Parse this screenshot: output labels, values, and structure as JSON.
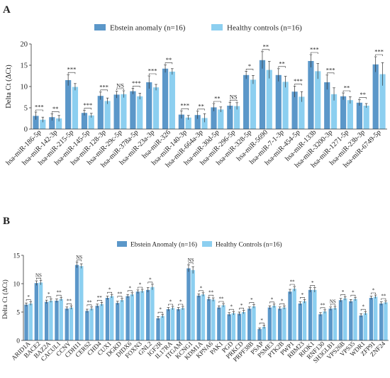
{
  "colors": {
    "series1": "#5b97c9",
    "series2": "#8ccff0",
    "errorbar": "#333333",
    "axis": "#333333"
  },
  "chart_data": [
    {
      "panel_label": "A",
      "type": "bar",
      "ylabel": "Delta Ct (ΔCt)",
      "ylim": [
        0,
        20
      ],
      "yticks": [
        0,
        5,
        10,
        15,
        20
      ],
      "legend_position": "top",
      "categories": [
        "hsa-miR-186-5p",
        "hsa-miR-142-3p",
        "hsa-miR-215-5p",
        "hsa-miR-145-5p",
        "hsa-miR-128-3p",
        "hsa-miR-29c-5p",
        "hsa-miR-378a-5p",
        "hsa-miR-23a-3p",
        "hsa-miR-326",
        "hsa-miR-140-3p",
        "hsa-miR-664a-3p",
        "hsa-miR-30d-5p",
        "hsa-miR-296-5p",
        "hsa-miR-328-5p",
        "hsa-miR-5690",
        "hsa-miR-7-1-3p",
        "hsa-miR-454-5p",
        "hsa-miR-133b",
        "hsa-miR-3200-3p",
        "hsa-miR-1271-5p",
        "hsa-miR-23b-3p",
        "hsa-miR-6749-5p"
      ],
      "series": [
        {
          "name": "Ebstein anomaly (n=16)",
          "values": [
            3.1,
            2.8,
            11.5,
            3.8,
            7.8,
            8.1,
            8.9,
            11.0,
            14.2,
            3.4,
            3.3,
            5.1,
            5.5,
            12.7,
            16.2,
            12.7,
            8.8,
            16.0,
            11.0,
            7.7,
            6.2,
            15.2
          ],
          "errors": [
            0.9,
            0.8,
            1.3,
            0.6,
            0.9,
            0.8,
            0.7,
            1.5,
            0.9,
            0.9,
            0.9,
            0.9,
            0.8,
            0.9,
            2.0,
            1.5,
            1.3,
            1.5,
            1.7,
            0.8,
            0.7,
            1.8
          ]
        },
        {
          "name": "Healthy controls (n=16)",
          "values": [
            2.2,
            2.5,
            9.9,
            3.2,
            6.6,
            8.2,
            7.7,
            9.8,
            13.5,
            2.7,
            2.6,
            4.6,
            5.4,
            11.6,
            13.9,
            11.1,
            7.6,
            13.6,
            8.2,
            6.8,
            5.5,
            12.9
          ],
          "errors": [
            0.6,
            0.7,
            0.8,
            0.5,
            0.7,
            0.8,
            0.7,
            0.7,
            0.7,
            0.5,
            1.0,
            0.6,
            0.8,
            1.0,
            2.0,
            1.3,
            1.2,
            1.8,
            1.5,
            0.8,
            0.5,
            2.7
          ]
        }
      ],
      "significance": [
        "***",
        "**",
        "***",
        "***",
        "***",
        "NS",
        "***",
        "***",
        "**",
        "***",
        "**",
        "**",
        "NS",
        "*",
        "**",
        "**",
        "***",
        "***",
        "***",
        "**",
        "**",
        "***"
      ]
    },
    {
      "panel_label": "B",
      "type": "bar",
      "ylabel": "Delta Ct (ΔCt)",
      "ylim": [
        0,
        15
      ],
      "yticks": [
        0,
        5,
        10,
        15
      ],
      "legend_position": "top",
      "categories": [
        "ARID1A",
        "BACE2",
        "BAZ2A",
        "CACUL1",
        "CCNY",
        "CDH11",
        "CERS2",
        "CHD4",
        "CUX1",
        "DGKD",
        "DIDX6",
        "FOXN3",
        "GNL2",
        "IGF2R",
        "IL17RA",
        "ITGAM",
        "KCNG1",
        "KDM1A",
        "KPNA6",
        "PAK1",
        "PGD",
        "PRKCD",
        "PRPF38B",
        "PSAP",
        "PSME3",
        "PTK2B",
        "PWP1",
        "RBM23",
        "RIOK1",
        "RNF130",
        "SH3GLB1",
        "VPS26B",
        "VPS35",
        "WDR1",
        "ZFP91",
        "ZNF24"
      ],
      "series": [
        {
          "name": "Ebstein Anomaly (n=16)",
          "values": [
            6.3,
            10.1,
            6.8,
            7.0,
            5.6,
            13.3,
            5.2,
            6.1,
            7.5,
            6.6,
            7.8,
            8.6,
            8.9,
            3.9,
            5.5,
            5.5,
            12.7,
            7.9,
            7.3,
            5.8,
            4.6,
            4.7,
            5.6,
            2.0,
            5.8,
            5.6,
            8.6,
            6.5,
            8.9,
            4.6,
            5.6,
            7.1,
            6.9,
            4.4,
            7.5,
            6.5
          ],
          "errors": [
            0.3,
            0.4,
            0.3,
            0.3,
            0.3,
            0.5,
            0.3,
            0.3,
            0.3,
            0.3,
            0.3,
            0.3,
            0.4,
            0.3,
            0.3,
            0.3,
            0.6,
            0.3,
            0.3,
            0.3,
            0.3,
            0.3,
            0.3,
            0.2,
            0.3,
            0.3,
            0.4,
            0.3,
            0.4,
            0.3,
            0.3,
            0.3,
            0.3,
            0.3,
            0.3,
            0.3
          ]
        },
        {
          "name": "Healthy Controls (n=16)",
          "values": [
            6.5,
            10.2,
            7.0,
            7.3,
            5.8,
            13.1,
            5.6,
            6.4,
            7.8,
            7.1,
            8.1,
            8.7,
            9.4,
            4.3,
            5.7,
            5.7,
            12.4,
            8.1,
            7.2,
            6.2,
            4.8,
            5.0,
            6.0,
            2.4,
            6.1,
            5.8,
            9.1,
            6.9,
            8.9,
            5.1,
            5.7,
            7.4,
            7.3,
            4.8,
            7.7,
            6.7
          ],
          "errors": [
            0.3,
            0.4,
            0.3,
            0.3,
            0.3,
            0.4,
            0.3,
            0.3,
            0.3,
            0.3,
            0.3,
            0.3,
            0.5,
            0.3,
            0.3,
            0.3,
            0.6,
            0.3,
            0.3,
            0.3,
            0.3,
            0.3,
            0.3,
            0.3,
            0.3,
            0.3,
            0.4,
            0.3,
            0.4,
            0.3,
            0.3,
            0.3,
            0.3,
            0.3,
            0.3,
            0.3
          ]
        }
      ],
      "significance": [
        "*",
        "NS",
        "*",
        "**",
        "**",
        "NS",
        "**",
        "**",
        "*",
        "**",
        "*",
        "*",
        "*",
        "*",
        "*",
        "*",
        "NS",
        "*",
        "**",
        "**",
        "*",
        "*",
        "*",
        "*",
        "*",
        "*",
        "**",
        "*",
        "*",
        "**",
        "NS",
        "*",
        "*",
        "*",
        "*",
        "**"
      ]
    }
  ]
}
